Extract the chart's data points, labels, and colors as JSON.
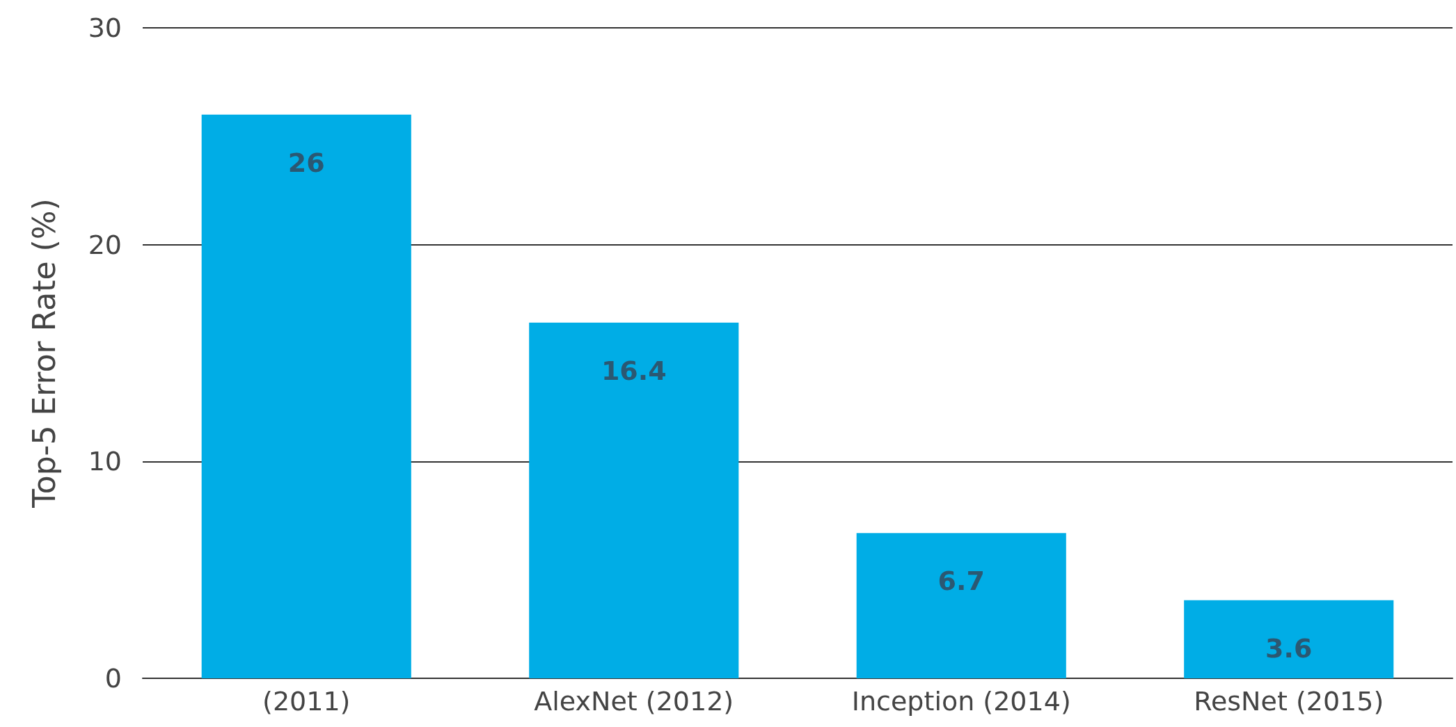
{
  "chart_data": {
    "type": "bar",
    "ylabel": "Top-5 Error Rate (%)",
    "categories": [
      "(2011)",
      "AlexNet (2012)",
      "Inception (2014)",
      "ResNet (2015)"
    ],
    "values": [
      26,
      16.4,
      6.7,
      3.6
    ],
    "color": "#00ade6",
    "ylim": [
      0,
      30
    ],
    "yticks": [
      0,
      10,
      20,
      30
    ],
    "grid": "y",
    "data_labels": true
  }
}
